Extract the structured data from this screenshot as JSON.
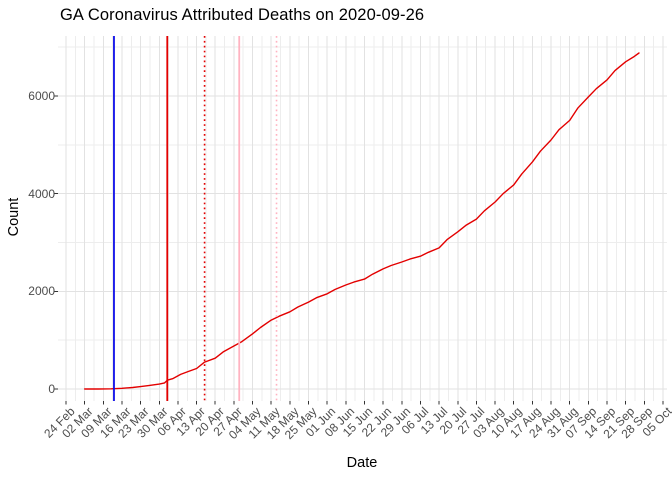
{
  "chart_data": {
    "type": "line",
    "title": "GA Coronavirus Attributed Deaths on 2020-09-26",
    "xlabel": "Date",
    "ylabel": "Count",
    "legend": false,
    "grid": true,
    "x_axis": {
      "start_date": "2020-02-24",
      "tick_interval_days": 7,
      "tick_labels": [
        "24 Feb",
        "02 Mar",
        "09 Mar",
        "16 Mar",
        "23 Mar",
        "30 Mar",
        "06 Apr",
        "13 Apr",
        "20 Apr",
        "27 Apr",
        "04 May",
        "11 May",
        "18 May",
        "25 May",
        "01 Jun",
        "08 Jun",
        "15 Jun",
        "22 Jun",
        "29 Jun",
        "06 Jul",
        "13 Jul",
        "20 Jul",
        "27 Jul",
        "03 Aug",
        "10 Aug",
        "17 Aug",
        "24 Aug",
        "31 Aug",
        "07 Sep",
        "14 Sep",
        "21 Sep",
        "28 Sep",
        "05 Oct"
      ]
    },
    "y_axis": {
      "tick_values": [
        0,
        2000,
        4000,
        6000
      ],
      "minor_gridline_values": [
        1000,
        3000,
        5000,
        7000
      ],
      "ylim": [
        0,
        7000
      ]
    },
    "series": [
      {
        "name": "cumulative-deaths",
        "color": "#E30000",
        "dates": [
          "2020-03-02",
          "2020-03-07",
          "2020-03-12",
          "2020-03-16",
          "2020-03-20",
          "2020-03-23",
          "2020-03-26",
          "2020-03-30",
          "2020-04-01",
          "2020-04-02",
          "2020-04-04",
          "2020-04-07",
          "2020-04-10",
          "2020-04-13",
          "2020-04-16",
          "2020-04-20",
          "2020-04-23",
          "2020-04-27",
          "2020-04-30",
          "2020-05-04",
          "2020-05-07",
          "2020-05-11",
          "2020-05-14",
          "2020-05-18",
          "2020-05-21",
          "2020-05-25",
          "2020-05-28",
          "2020-06-01",
          "2020-06-04",
          "2020-06-08",
          "2020-06-11",
          "2020-06-15",
          "2020-06-18",
          "2020-06-22",
          "2020-06-25",
          "2020-06-29",
          "2020-07-02",
          "2020-07-06",
          "2020-07-09",
          "2020-07-13",
          "2020-07-16",
          "2020-07-20",
          "2020-07-23",
          "2020-07-27",
          "2020-07-30",
          "2020-08-03",
          "2020-08-06",
          "2020-08-10",
          "2020-08-13",
          "2020-08-17",
          "2020-08-20",
          "2020-08-24",
          "2020-08-27",
          "2020-08-31",
          "2020-09-03",
          "2020-09-07",
          "2020-09-10",
          "2020-09-14",
          "2020-09-17",
          "2020-09-21",
          "2020-09-24",
          "2020-09-26"
        ],
        "values": [
          0,
          1,
          4,
          15,
          30,
          50,
          70,
          100,
          125,
          180,
          210,
          300,
          360,
          420,
          550,
          630,
          760,
          880,
          970,
          1130,
          1260,
          1410,
          1490,
          1580,
          1680,
          1780,
          1870,
          1950,
          2040,
          2130,
          2190,
          2250,
          2350,
          2460,
          2530,
          2600,
          2660,
          2720,
          2800,
          2890,
          3060,
          3220,
          3350,
          3480,
          3650,
          3830,
          4000,
          4180,
          4400,
          4650,
          4870,
          5100,
          5310,
          5500,
          5750,
          5980,
          6150,
          6330,
          6520,
          6700,
          6800,
          6880
        ]
      }
    ],
    "vlines": [
      {
        "name": "blue-solid-vline",
        "date": "2020-03-13",
        "color": "#0D0DE8",
        "style": "solid"
      },
      {
        "name": "red-solid-vline",
        "date": "2020-04-02",
        "color": "#E30000",
        "style": "solid"
      },
      {
        "name": "red-dotted-vline",
        "date": "2020-04-16",
        "color": "#E30000",
        "style": "dotted"
      },
      {
        "name": "pink-solid-vline",
        "date": "2020-04-29",
        "color": "#FFB3C1",
        "style": "solid"
      },
      {
        "name": "pink-dotted-vline",
        "date": "2020-05-13",
        "color": "#FFB3C1",
        "style": "dotted"
      }
    ],
    "colors": {
      "major_grid": "#E2E2E2",
      "minor_grid": "#EDEDED",
      "tick_mark": "#333333",
      "tick_text": "#4d4d4d"
    }
  }
}
